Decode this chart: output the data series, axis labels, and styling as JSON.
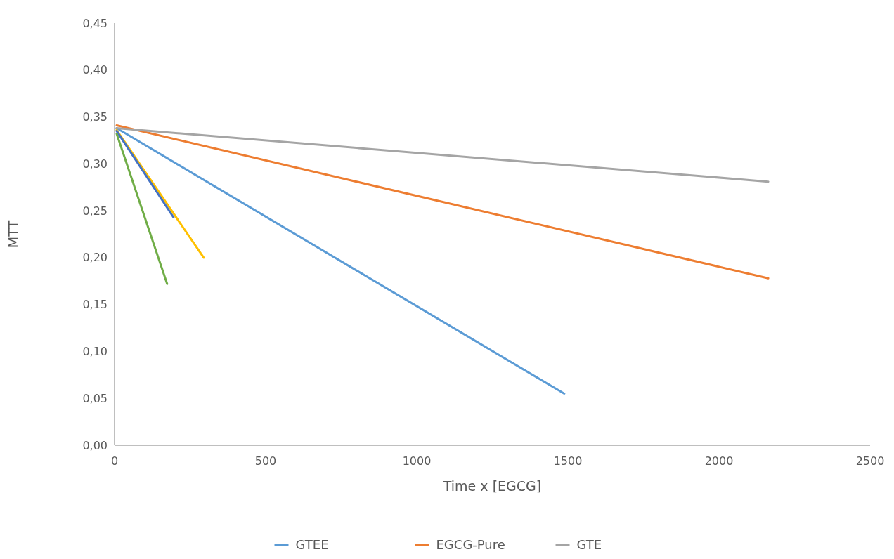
{
  "chart_data": {
    "type": "line",
    "xlabel": "Time x [EGCG]",
    "ylabel": "MTT",
    "xlim": [
      0,
      2500
    ],
    "xticks": [
      0,
      500,
      1000,
      1500,
      2000,
      2500
    ],
    "ylim": [
      0,
      0.45
    ],
    "yticks": [
      {
        "value": 0,
        "label": "0,00"
      },
      {
        "value": 0.05,
        "label": "0,05"
      },
      {
        "value": 0.1,
        "label": "0,10"
      },
      {
        "value": 0.15,
        "label": "0,15"
      },
      {
        "value": 0.2,
        "label": "0,20"
      },
      {
        "value": 0.25,
        "label": "0,25"
      },
      {
        "value": 0.3,
        "label": "0,30"
      },
      {
        "value": 0.35,
        "label": "0,35"
      },
      {
        "value": 0.4,
        "label": "0,40"
      },
      {
        "value": 0.45,
        "label": "0,45"
      }
    ],
    "grid": false,
    "legend": "bottom",
    "marker": "none",
    "line_style": "solid",
    "series": [
      {
        "name": "GTEE",
        "color": "#5b9bd5",
        "x": [
          7,
          1488
        ],
        "values": [
          0.338,
          0.055
        ]
      },
      {
        "name": "EGCG-Pure",
        "color": "#ed7d31",
        "x": [
          7,
          2163
        ],
        "values": [
          0.341,
          0.178
        ]
      },
      {
        "name": "GTE",
        "color": "#a5a5a5",
        "x": [
          7,
          2163
        ],
        "values": [
          0.338,
          0.281
        ]
      },
      {
        "color": "#ffc000",
        "x": [
          7,
          295
        ],
        "values": [
          0.336,
          0.2
        ]
      },
      {
        "color": "#4472c4",
        "x": [
          7,
          195
        ],
        "values": [
          0.335,
          0.243
        ]
      },
      {
        "color": "#70ad47",
        "x": [
          7,
          174
        ],
        "values": [
          0.332,
          0.172
        ]
      }
    ]
  }
}
